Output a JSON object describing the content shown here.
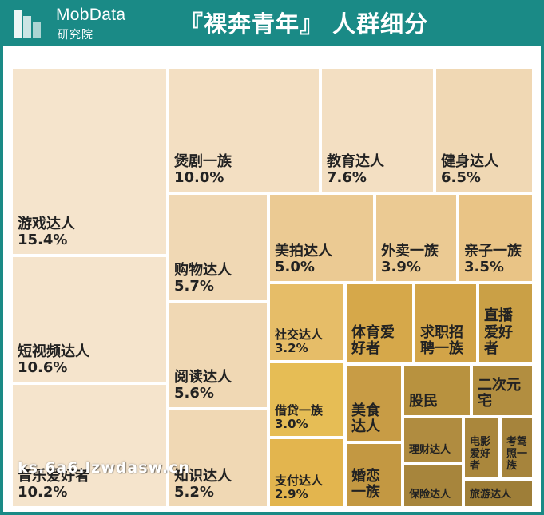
{
  "header": {
    "brand_name": "MobData",
    "brand_sub": "研究院",
    "title": "『裸奔青年』 人群细分",
    "logo_icon": "building-bars-logo"
  },
  "colors": {
    "header_bg": "#1a8a86",
    "border": "#1a8a86"
  },
  "watermark": "ks.6a6.lzwdasw.cn",
  "chart_data": {
    "type": "treemap",
    "unit": "%",
    "items": [
      {
        "name": "游戏达人",
        "label": "游戏达人",
        "value": 15.4,
        "value_label": "15.4%",
        "color": "#f5e4cc"
      },
      {
        "name": "短视频达人",
        "label": "短视频达人",
        "value": 10.6,
        "value_label": "10.6%",
        "color": "#f5e4cc"
      },
      {
        "name": "音乐爱好者",
        "label": "音乐爱好者",
        "value": 10.2,
        "value_label": "10.2%",
        "color": "#f5e4cc"
      },
      {
        "name": "煲剧一族",
        "label": "煲剧一族",
        "value": 10.0,
        "value_label": "10.0%",
        "color": "#f3dfc2"
      },
      {
        "name": "教育达人",
        "label": "教育达人",
        "value": 7.6,
        "value_label": "7.6%",
        "color": "#f3dfc2"
      },
      {
        "name": "健身达人",
        "label": "健身达人",
        "value": 6.5,
        "value_label": "6.5%",
        "color": "#f0d8b4"
      },
      {
        "name": "购物达人",
        "label": "购物达人",
        "value": 5.7,
        "value_label": "5.7%",
        "color": "#f0d8b4"
      },
      {
        "name": "阅读达人",
        "label": "阅读达人",
        "value": 5.6,
        "value_label": "5.6%",
        "color": "#f0d8b4"
      },
      {
        "name": "知识达人",
        "label": "知识达人",
        "value": 5.2,
        "value_label": "5.2%",
        "color": "#f0d8b4"
      },
      {
        "name": "美拍达人",
        "label": "美拍达人",
        "value": 5.0,
        "value_label": "5.0%",
        "color": "#ebca93"
      },
      {
        "name": "外卖一族",
        "label": "外卖一族",
        "value": 3.9,
        "value_label": "3.9%",
        "color": "#ebca93"
      },
      {
        "name": "亲子一族",
        "label": "亲子一族",
        "value": 3.5,
        "value_label": "3.5%",
        "color": "#e9c486"
      },
      {
        "name": "社交达人",
        "label": "社交达人",
        "value": 3.2,
        "value_label": "3.2%",
        "color": "#e6bd68"
      },
      {
        "name": "借贷一族",
        "label": "借贷一族",
        "value": 3.0,
        "value_label": "3.0%",
        "color": "#e6bd55"
      },
      {
        "name": "支付达人",
        "label": "支付达人",
        "value": 2.9,
        "value_label": "2.9%",
        "color": "#e3b54e"
      },
      {
        "name": "体育爱好者",
        "label": "体育爱\n好者",
        "color": "#d6a84a"
      },
      {
        "name": "求职招聘一族",
        "label": "求职招\n聘一族",
        "color": "#d2a448"
      },
      {
        "name": "直播爱好者",
        "label": "直播\n爱好\n者",
        "color": "#caa046"
      },
      {
        "name": "美食达人",
        "label": "美食\n达人",
        "color": "#c89c45"
      },
      {
        "name": "婚恋一族",
        "label": "婚恋\n一族",
        "color": "#c39842"
      },
      {
        "name": "股民",
        "label": "股民",
        "color": "#b8923f"
      },
      {
        "name": "二次元宅",
        "label": "二次元\n宅",
        "color": "#b28e40"
      },
      {
        "name": "理财达人",
        "label": "理财达人",
        "color": "#b08c40"
      },
      {
        "name": "电影爱好者",
        "label": "电影\n爱好\n者",
        "color": "#aa873c"
      },
      {
        "name": "考驾照一族",
        "label": "考驾\n照一\n族",
        "color": "#a6843c"
      },
      {
        "name": "保险达人",
        "label": "保险达人",
        "color": "#a7853c"
      },
      {
        "name": "旅游达人",
        "label": "旅游达人",
        "color": "#9e7e38"
      }
    ]
  }
}
